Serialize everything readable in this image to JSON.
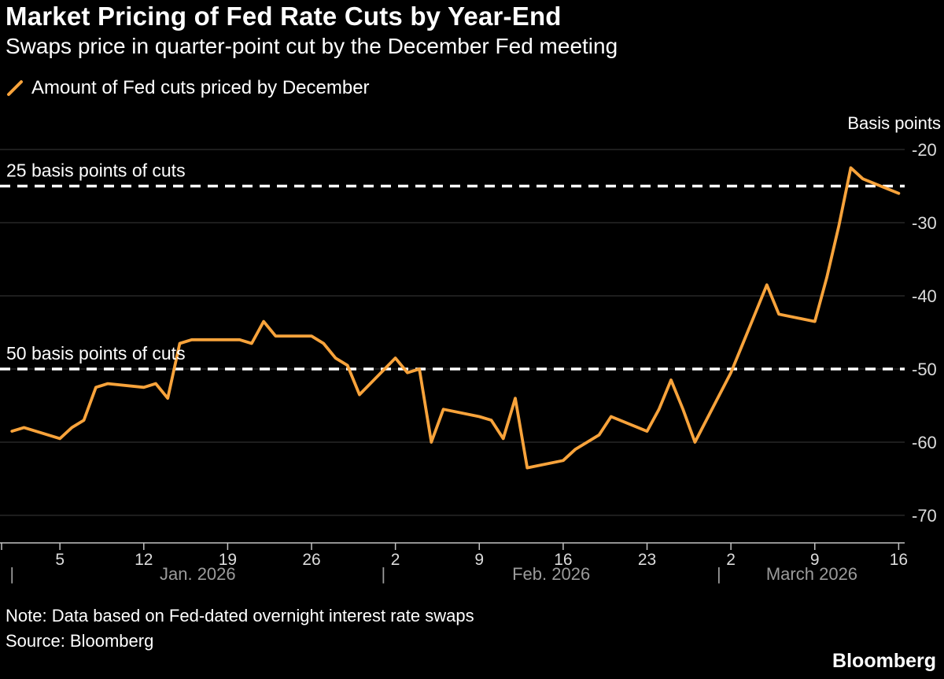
{
  "page": {
    "note": "Note: Data based on Fed-dated overnight interest rate swaps",
    "source": "Source: Bloomberg",
    "brand": "Bloomberg"
  },
  "colors": {
    "background": "#000000",
    "accent": "#F8A33B",
    "grid": "#3A3A3A",
    "axis_line": "#C2C2C2",
    "tick_label": "#DCDCDC",
    "month_label": "#9B9B9B",
    "text": "#FFFFFF",
    "reference_line": "#FFFFFF"
  },
  "chart_data": {
    "type": "line",
    "title": "Market Pricing of Fed Rate Cuts by Year-End",
    "subtitle": "Swaps price in quarter-point cut by the December Fed meeting",
    "unit_label": "Basis points",
    "legend_position": "top-left",
    "grid": "horizontal",
    "ylim": [
      -73,
      -18
    ],
    "yticks": [
      -20,
      -30,
      -40,
      -50,
      -60,
      -70
    ],
    "ytick_labels": [
      "-20",
      "-30",
      "-40",
      "-50",
      "-60",
      "-70"
    ],
    "xticks": [
      "Jan 5",
      "Jan 12",
      "Jan 19",
      "Jan 26",
      "Feb 2",
      "Feb 9",
      "Feb 16",
      "Feb 23",
      "Mar 2",
      "Mar 9",
      "Mar 16"
    ],
    "xtick_labels": [
      "5",
      "12",
      "19",
      "26",
      "2",
      "9",
      "16",
      "23",
      "2",
      "9",
      "16"
    ],
    "month_markers": [
      {
        "date": "Jan 1",
        "label": "Jan. 2026"
      },
      {
        "date": "Feb 1",
        "label": "Feb. 2026"
      },
      {
        "date": "Mar 1",
        "label": "March 2026"
      }
    ],
    "reference_lines": [
      {
        "value": -25,
        "label": "25 basis points of cuts"
      },
      {
        "value": -50,
        "label": "50 basis points of cuts"
      }
    ],
    "series": [
      {
        "name": "Amount of Fed cuts priced by December",
        "color": "#F8A33B",
        "dates": [
          "Jan 1",
          "Jan 2",
          "Jan 5",
          "Jan 6",
          "Jan 7",
          "Jan 8",
          "Jan 9",
          "Jan 12",
          "Jan 13",
          "Jan 14",
          "Jan 15",
          "Jan 16",
          "Jan 19",
          "Jan 20",
          "Jan 21",
          "Jan 22",
          "Jan 23",
          "Jan 26",
          "Jan 27",
          "Jan 28",
          "Jan 29",
          "Jan 30",
          "Feb 2",
          "Feb 3",
          "Feb 4",
          "Feb 5",
          "Feb 6",
          "Feb 9",
          "Feb 10",
          "Feb 11",
          "Feb 12",
          "Feb 13",
          "Feb 16",
          "Feb 17",
          "Feb 18",
          "Feb 19",
          "Feb 20",
          "Feb 23",
          "Feb 24",
          "Feb 25",
          "Feb 26",
          "Feb 27",
          "Mar 2",
          "Mar 3",
          "Mar 4",
          "Mar 5",
          "Mar 6",
          "Mar 9",
          "Mar 10",
          "Mar 11",
          "Mar 12",
          "Mar 13",
          "Mar 16"
        ],
        "values": [
          -58.5,
          -58,
          -59.5,
          -58,
          -57,
          -52.5,
          -52,
          -52.5,
          -52,
          -54,
          -46.5,
          -46,
          -46,
          -46,
          -46.5,
          -43.5,
          -45.5,
          -45.5,
          -46.5,
          -48.5,
          -49.5,
          -53.5,
          -48.5,
          -50.5,
          -50,
          -60,
          -55.5,
          -56.5,
          -57,
          -59.5,
          -54,
          -63.5,
          -62.5,
          -61,
          -60,
          -59,
          -56.5,
          -58.5,
          -55.5,
          -51.5,
          -55.5,
          -60,
          -50.5,
          -46.5,
          -42.5,
          -38.5,
          -42.5,
          -43.5,
          -37.5,
          -30.5,
          -22.5,
          -24,
          -26
        ]
      }
    ]
  }
}
